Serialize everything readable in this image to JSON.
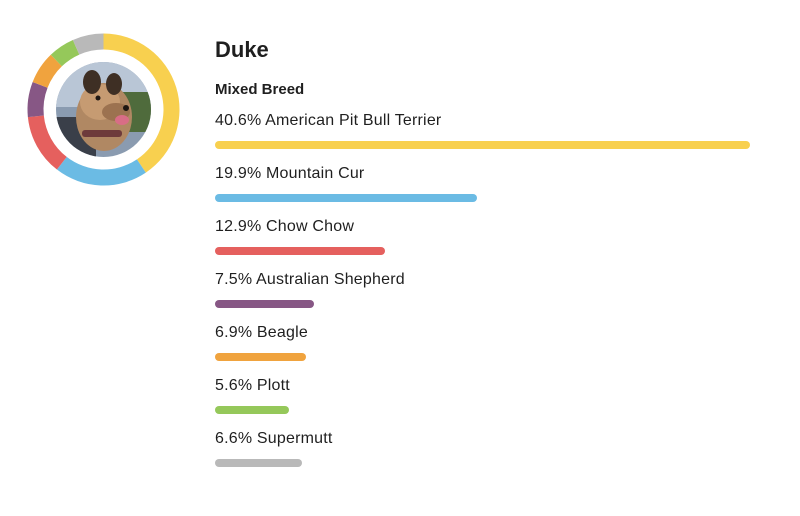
{
  "dog": {
    "name": "Duke",
    "breed_type": "Mixed Breed"
  },
  "chart_data": {
    "type": "bar",
    "orientation": "horizontal",
    "categories": [
      "American Pit Bull Terrier",
      "Mountain Cur",
      "Chow Chow",
      "Australian Shepherd",
      "Beagle",
      "Plott",
      "Supermutt"
    ],
    "values": [
      40.6,
      19.9,
      12.9,
      7.5,
      6.9,
      5.6,
      6.6
    ],
    "labels": [
      "40.6% American Pit Bull Terrier",
      "19.9% Mountain Cur",
      "12.9% Chow Chow",
      "7.5% Australian Shepherd",
      "6.9% Beagle",
      "5.6% Plott",
      "6.6% Supermutt"
    ],
    "colors": [
      "#f8d04f",
      "#6bbbe4",
      "#e5605e",
      "#875785",
      "#f0a33e",
      "#95c85a",
      "#b9b9b9"
    ],
    "xlim": [
      0,
      40.6
    ],
    "grid": false
  },
  "donut": {
    "type": "pie",
    "order": [
      0,
      1,
      2,
      3,
      4,
      5,
      6
    ]
  }
}
